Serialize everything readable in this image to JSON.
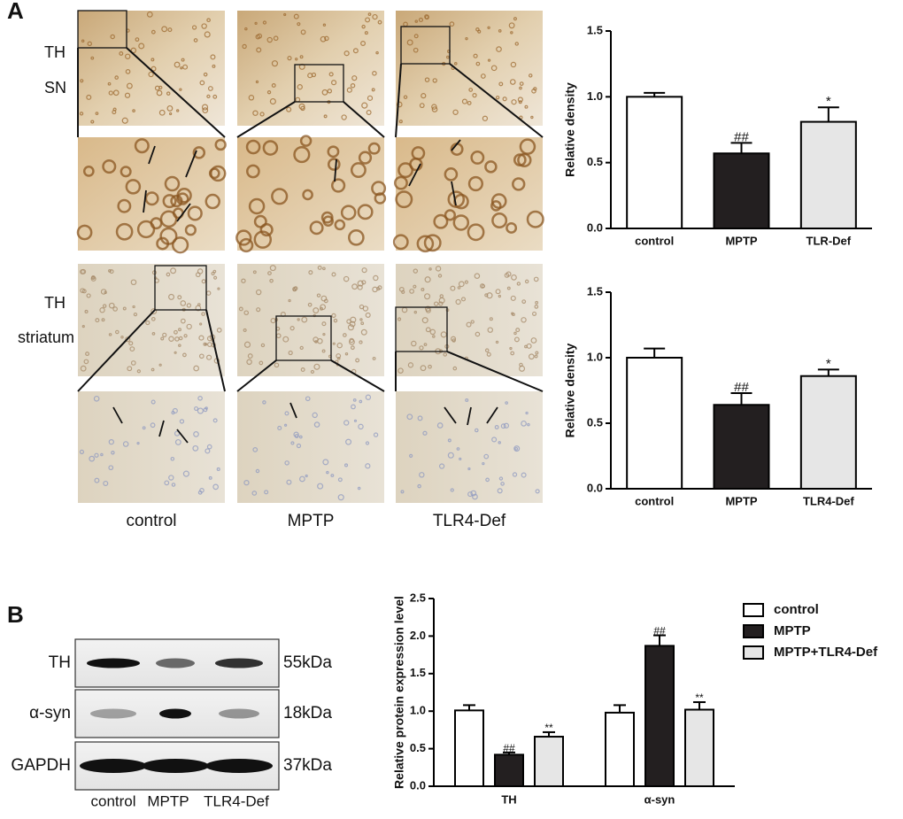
{
  "panel_a": {
    "label": "A",
    "row_labels": [
      "TH",
      "SN",
      "TH",
      "striatum"
    ],
    "column_labels": [
      "control",
      "MPTP",
      "TLR4-Def"
    ]
  },
  "panel_b": {
    "label": "B",
    "proteins": [
      "TH",
      "α-syn",
      "GAPDH"
    ],
    "sizes": [
      "55kDa",
      "18kDa",
      "37kDa"
    ],
    "lanes": [
      "control",
      "MPTP",
      "TLR4-Def"
    ]
  },
  "chart_data": [
    {
      "type": "bar",
      "y_label": "Relative density",
      "categories": [
        "control",
        "MPTP",
        "TLR-Def"
      ],
      "values": [
        1.0,
        0.57,
        0.81
      ],
      "errors": [
        0.03,
        0.08,
        0.11
      ],
      "annotations": [
        null,
        "##",
        "*"
      ],
      "colors": [
        "#ffffff",
        "#231f20",
        "#e6e6e6"
      ],
      "ylim": [
        0,
        1.5
      ],
      "yticks": [
        {
          "value": 0,
          "label": "0.0"
        },
        0.5,
        {
          "value": 1,
          "label": "1.0"
        },
        1.5
      ]
    },
    {
      "type": "bar",
      "y_label": "Relative density",
      "categories": [
        "control",
        "MPTP",
        "TLR4-Def"
      ],
      "values": [
        1.0,
        0.64,
        0.86
      ],
      "errors": [
        0.07,
        0.09,
        0.05
      ],
      "annotations": [
        null,
        "##",
        "*"
      ],
      "colors": [
        "#ffffff",
        "#231f20",
        "#e6e6e6"
      ],
      "ylim": [
        0,
        1.5
      ],
      "yticks": [
        {
          "value": 0,
          "label": "0.0"
        },
        0.5,
        {
          "value": 1,
          "label": "1.0"
        },
        1.5
      ]
    },
    {
      "type": "grouped_bar",
      "y_label": "Relative protein expression level",
      "categories": [
        "TH",
        "α-syn"
      ],
      "series": [
        {
          "name": "control",
          "color": "#ffffff",
          "values": [
            1.01,
            0.98
          ],
          "errors": [
            0.07,
            0.1
          ],
          "annotations": [
            null,
            null
          ]
        },
        {
          "name": "MPTP",
          "color": "#231f20",
          "values": [
            0.42,
            1.87
          ],
          "errors": [
            0.03,
            0.14
          ],
          "annotations": [
            "##",
            "##"
          ]
        },
        {
          "name": "MPTP+TLR4-Def",
          "color": "#e6e6e6",
          "values": [
            0.66,
            1.02
          ],
          "errors": [
            0.06,
            0.1
          ],
          "annotations": [
            "**",
            "**"
          ]
        }
      ],
      "ylim": [
        0,
        2.5
      ],
      "yticks": [
        {
          "value": 0,
          "label": "0.0"
        },
        0.5,
        {
          "value": 1,
          "label": "1.0"
        },
        1.5,
        {
          "value": 2,
          "label": "2.0"
        },
        2.5
      ],
      "legend": "outside-right"
    }
  ]
}
